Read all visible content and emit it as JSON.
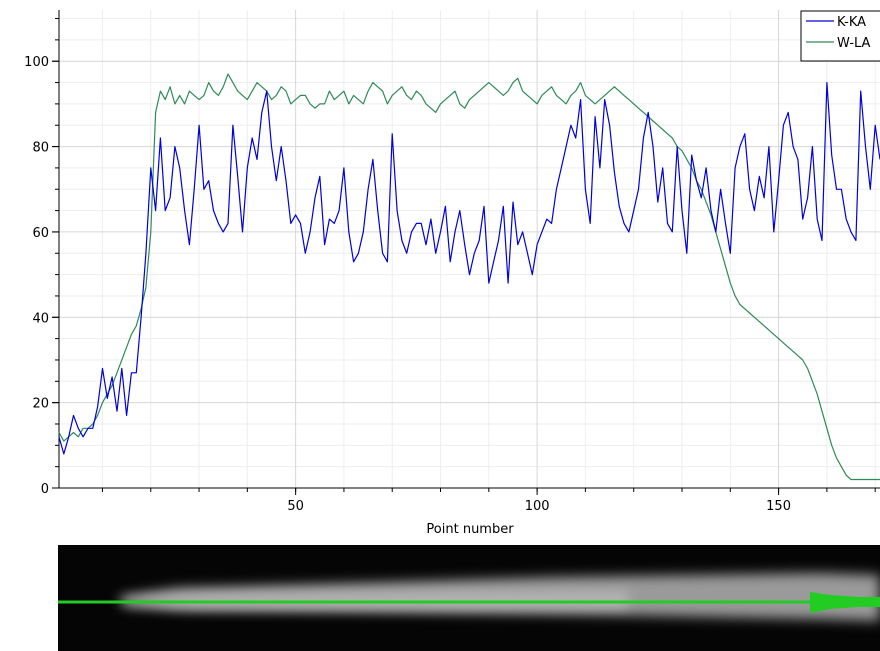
{
  "chart_data": {
    "type": "line",
    "xlabel": "Point number",
    "ylabel": "",
    "xlim": [
      1,
      171
    ],
    "ylim": [
      0,
      112
    ],
    "x_ticks": [
      50,
      100,
      150
    ],
    "y_ticks": [
      0,
      20,
      40,
      60,
      80,
      100
    ],
    "grid": true,
    "legend_position": "top-right",
    "series": [
      {
        "name": "K-KA",
        "color": "#0000dd",
        "x_start": 1,
        "values": [
          12,
          8,
          12,
          17,
          14,
          12,
          14,
          14,
          19,
          28,
          21,
          26,
          18,
          28,
          17,
          27,
          27,
          40,
          55,
          75,
          65,
          82,
          65,
          68,
          80,
          75,
          65,
          57,
          70,
          85,
          70,
          72,
          65,
          62,
          60,
          62,
          85,
          73,
          60,
          75,
          82,
          77,
          88,
          93,
          80,
          72,
          80,
          72,
          62,
          64,
          62,
          55,
          60,
          68,
          73,
          57,
          63,
          62,
          65,
          75,
          60,
          53,
          55,
          60,
          70,
          77,
          65,
          55,
          53,
          83,
          65,
          58,
          55,
          60,
          62,
          62,
          57,
          63,
          55,
          60,
          66,
          53,
          60,
          65,
          57,
          50,
          55,
          58,
          66,
          48,
          53,
          58,
          66,
          48,
          67,
          57,
          60,
          55,
          50,
          57,
          60,
          63,
          62,
          70,
          75,
          80,
          85,
          82,
          91,
          70,
          62,
          87,
          75,
          91,
          85,
          74,
          66,
          62,
          60,
          65,
          70,
          82,
          88,
          80,
          67,
          75,
          62,
          60,
          80,
          65,
          55,
          78,
          72,
          68,
          75,
          65,
          60,
          70,
          62,
          55,
          75,
          80,
          83,
          70,
          65,
          73,
          68,
          80,
          60,
          72,
          85,
          88,
          80,
          77,
          63,
          68,
          80,
          63,
          58,
          95,
          78,
          70,
          70,
          63,
          60,
          58,
          93,
          80,
          70,
          85,
          77
        ],
        "notes": "approximate"
      },
      {
        "name": "W-LA",
        "color": "#2e8b57",
        "x_start": 1,
        "values": [
          13,
          11,
          12,
          13,
          12,
          14,
          14,
          15,
          17,
          20,
          22,
          24,
          27,
          30,
          33,
          36,
          38,
          42,
          47,
          60,
          88,
          93,
          91,
          94,
          90,
          92,
          90,
          93,
          92,
          91,
          92,
          95,
          93,
          92,
          94,
          97,
          95,
          93,
          92,
          91,
          93,
          95,
          94,
          93,
          91,
          92,
          94,
          93,
          90,
          91,
          92,
          92,
          90,
          89,
          90,
          90,
          93,
          91,
          92,
          93,
          90,
          92,
          91,
          90,
          93,
          95,
          94,
          93,
          90,
          92,
          93,
          94,
          92,
          91,
          93,
          92,
          90,
          89,
          88,
          90,
          91,
          92,
          93,
          90,
          89,
          91,
          92,
          93,
          94,
          95,
          94,
          93,
          92,
          93,
          95,
          96,
          93,
          92,
          91,
          90,
          92,
          93,
          94,
          92,
          91,
          90,
          92,
          93,
          95,
          92,
          91,
          90,
          91,
          92,
          93,
          94,
          93,
          92,
          91,
          90,
          89,
          88,
          87,
          86,
          85,
          84,
          83,
          82,
          80,
          79,
          77,
          75,
          72,
          70,
          67,
          64,
          60,
          56,
          52,
          48,
          45,
          43,
          42,
          41,
          40,
          39,
          38,
          37,
          36,
          35,
          34,
          33,
          32,
          31,
          30,
          28,
          25,
          22,
          18,
          14,
          10,
          7,
          5,
          3,
          2,
          2,
          2,
          2,
          2,
          2,
          2
        ],
        "notes": "approximate"
      }
    ]
  },
  "profile_image": {
    "line_color": "#22cc22"
  }
}
